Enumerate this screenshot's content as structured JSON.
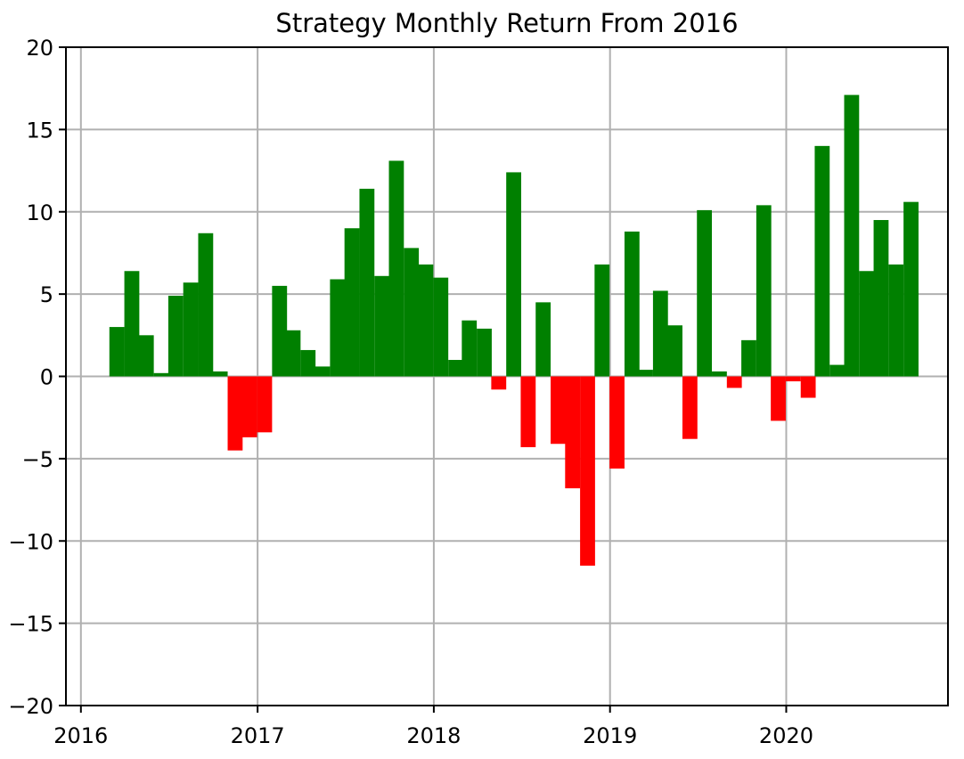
{
  "chart_data": {
    "type": "bar",
    "title": "Strategy Monthly Return From 2016",
    "xlabel": "",
    "ylabel": "",
    "ylim": [
      -20,
      20
    ],
    "yticks": [
      "−20",
      "−15",
      "−10",
      "−5",
      "0",
      "5",
      "10",
      "15",
      "20"
    ],
    "xlim": [
      "2015-12-01",
      "2020-12-01"
    ],
    "xticks": [
      "2016",
      "2017",
      "2018",
      "2019",
      "2020"
    ],
    "grid": true,
    "colors": {
      "positive": "#008000",
      "negative": "#ff0000"
    },
    "x": [
      "2016-02-29",
      "2016-03-31",
      "2016-04-30",
      "2016-05-31",
      "2016-06-30",
      "2016-07-31",
      "2016-08-31",
      "2016-09-30",
      "2016-10-31",
      "2016-11-30",
      "2016-12-31",
      "2017-01-31",
      "2017-02-28",
      "2017-03-31",
      "2017-04-30",
      "2017-05-31",
      "2017-06-30",
      "2017-07-31",
      "2017-08-31",
      "2017-09-30",
      "2017-10-31",
      "2017-11-30",
      "2017-12-31",
      "2018-01-31",
      "2018-02-28",
      "2018-03-31",
      "2018-04-30",
      "2018-05-31",
      "2018-06-30",
      "2018-07-31",
      "2018-08-31",
      "2018-09-30",
      "2018-10-31",
      "2018-11-30",
      "2018-12-31",
      "2019-01-31",
      "2019-02-28",
      "2019-03-31",
      "2019-04-30",
      "2019-05-31",
      "2019-06-30",
      "2019-07-31",
      "2019-08-31",
      "2019-09-30",
      "2019-10-31",
      "2019-11-30",
      "2019-12-31",
      "2020-01-31",
      "2020-02-29",
      "2020-03-31",
      "2020-04-30",
      "2020-05-31",
      "2020-06-30",
      "2020-07-31",
      "2020-08-31",
      "2020-09-30"
    ],
    "values": [
      3.0,
      6.4,
      2.5,
      0.2,
      4.9,
      5.7,
      8.7,
      0.3,
      -4.5,
      -3.7,
      -3.4,
      5.5,
      2.8,
      1.6,
      0.6,
      5.9,
      9.0,
      11.4,
      6.1,
      13.1,
      7.8,
      6.8,
      6.0,
      1.0,
      3.4,
      2.9,
      -0.8,
      12.4,
      -4.3,
      4.5,
      -4.1,
      -6.8,
      -11.5,
      6.8,
      -5.6,
      8.8,
      0.4,
      5.2,
      3.1,
      -3.8,
      10.1,
      0.3,
      -0.7,
      2.2,
      10.4,
      -2.7,
      -0.3,
      -1.3,
      14.0,
      0.7,
      17.1,
      6.4,
      9.5,
      6.8,
      10.6,
      0.0
    ]
  }
}
